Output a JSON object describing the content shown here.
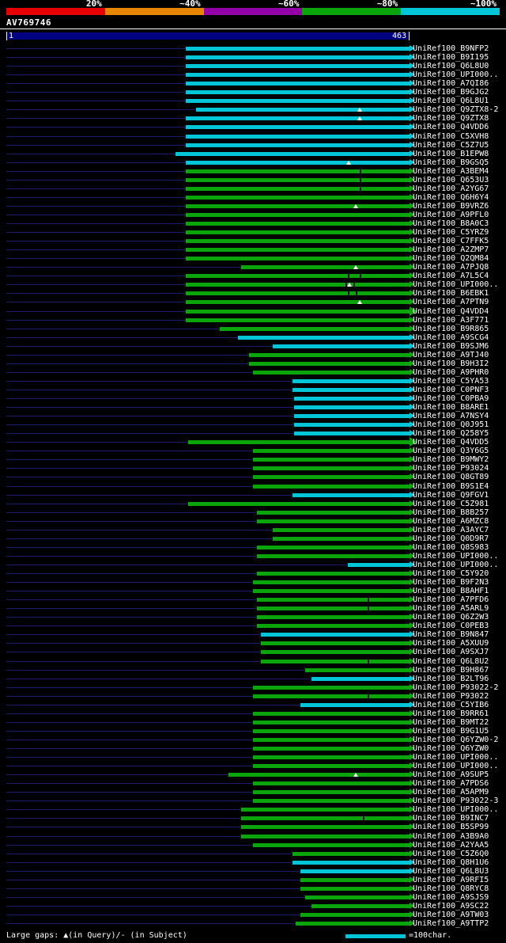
{
  "colors": {
    "background": "#000000",
    "text": "#ffffff",
    "row_baseline": "#1c1c6e",
    "query_bar": "#000080",
    "cyan": "#00c6d8",
    "green": "#0aa50a"
  },
  "scale_bar": {
    "segments": [
      {
        "label": "20%",
        "color": "#e60000"
      },
      {
        "label": "~40%",
        "color": "#e88600"
      },
      {
        "label": "~60%",
        "color": "#9400a8"
      },
      {
        "label": "~80%",
        "color": "#0aa50a"
      },
      {
        "label": "~100%",
        "color": "#00c6d8"
      }
    ]
  },
  "query": {
    "name": "AV769746",
    "start_label": "1",
    "end_label": "463",
    "length": 463
  },
  "footer": {
    "gaps_legend": "Large gaps: ▲(in Query)/- (in Subject)",
    "scale_label": "=100char."
  },
  "chart_data": {
    "type": "bar",
    "subtype": "alignment-coverage-spans",
    "x_range": [
      1,
      463
    ],
    "legend": {
      "cyan": "~100% identity",
      "green": "~80% identity"
    },
    "rows": [
      {
        "label": "UniRef100_B9NFP2",
        "identity": "cyan",
        "start": 207,
        "end": 463
      },
      {
        "label": "UniRef100_B9I195",
        "identity": "cyan",
        "start": 207,
        "end": 463
      },
      {
        "label": "UniRef100_Q6L8U0",
        "identity": "cyan",
        "start": 207,
        "end": 463
      },
      {
        "label": "UniRef100_UPI000..",
        "identity": "cyan",
        "start": 207,
        "end": 463
      },
      {
        "label": "UniRef100_A7QI86",
        "identity": "cyan",
        "start": 207,
        "end": 463
      },
      {
        "label": "UniRef100_B9GJG2",
        "identity": "cyan",
        "start": 207,
        "end": 463
      },
      {
        "label": "UniRef100_Q6L8U1",
        "identity": "cyan",
        "start": 207,
        "end": 463
      },
      {
        "label": "UniRef100_Q9ZTX8-2",
        "identity": "cyan",
        "start": 218,
        "end": 463,
        "gaps_query": [
          406
        ]
      },
      {
        "label": "UniRef100_Q9ZTX8",
        "identity": "cyan",
        "start": 207,
        "end": 463,
        "gaps_query": [
          406
        ]
      },
      {
        "label": "UniRef100_Q4VDD6",
        "identity": "cyan",
        "start": 207,
        "end": 463
      },
      {
        "label": "UniRef100_C5XVH8",
        "identity": "cyan",
        "start": 207,
        "end": 463
      },
      {
        "label": "UniRef100_C5Z7U5",
        "identity": "cyan",
        "start": 207,
        "end": 463
      },
      {
        "label": "UniRef100_B1EPW8",
        "identity": "cyan",
        "start": 195,
        "end": 463
      },
      {
        "label": "UniRef100_B9GSQ5",
        "identity": "cyan",
        "start": 207,
        "end": 463,
        "gaps_query": [
          393
        ]
      },
      {
        "label": "UniRef100_A3BEM4",
        "identity": "green",
        "start": 207,
        "end": 463,
        "gaps_subject": [
          406
        ]
      },
      {
        "label": "UniRef100_Q653U3",
        "identity": "green",
        "start": 207,
        "end": 463,
        "gaps_subject": [
          406
        ]
      },
      {
        "label": "UniRef100_A2YG67",
        "identity": "green",
        "start": 207,
        "end": 463,
        "gaps_subject": [
          406
        ]
      },
      {
        "label": "UniRef100_Q6H6Y4",
        "identity": "green",
        "start": 207,
        "end": 463
      },
      {
        "label": "UniRef100_B9VRZ6",
        "identity": "green",
        "start": 207,
        "end": 463,
        "gaps_query": [
          401
        ]
      },
      {
        "label": "UniRef100_A9PFL0",
        "identity": "green",
        "start": 207,
        "end": 463
      },
      {
        "label": "UniRef100_B8A0C3",
        "identity": "green",
        "start": 207,
        "end": 463
      },
      {
        "label": "UniRef100_C5YRZ9",
        "identity": "green",
        "start": 207,
        "end": 463
      },
      {
        "label": "UniRef100_C7FFK5",
        "identity": "green",
        "start": 207,
        "end": 463
      },
      {
        "label": "UniRef100_A2ZMP7",
        "identity": "green",
        "start": 207,
        "end": 463
      },
      {
        "label": "UniRef100_Q2QM84",
        "identity": "green",
        "start": 207,
        "end": 463
      },
      {
        "label": "UniRef100_A7PJQ8",
        "identity": "green",
        "start": 270,
        "end": 463,
        "gaps_query": [
          401
        ]
      },
      {
        "label": "UniRef100_A7L5C4",
        "identity": "green",
        "start": 207,
        "end": 463,
        "gaps_subject": [
          392,
          406
        ]
      },
      {
        "label": "UniRef100_UPI000..",
        "identity": "green",
        "start": 207,
        "end": 463,
        "gaps_query": [
          394
        ],
        "gaps_subject": [
          390,
          399
        ]
      },
      {
        "label": "UniRef100_B6EBK1",
        "identity": "green",
        "start": 207,
        "end": 463,
        "gaps_subject": [
          392,
          401
        ]
      },
      {
        "label": "UniRef100_A7PTN9",
        "identity": "green",
        "start": 207,
        "end": 463,
        "gaps_query": [
          406
        ]
      },
      {
        "label": "UniRef100_Q4VDD4",
        "identity": "green",
        "start": 207,
        "end": 463,
        "big_arrow": true
      },
      {
        "label": "UniRef100_A3F771",
        "identity": "green",
        "start": 207,
        "end": 463
      },
      {
        "label": "UniRef100_B9R865",
        "identity": "green",
        "start": 246,
        "end": 463
      },
      {
        "label": "UniRef100_A9SCG4",
        "identity": "cyan",
        "start": 266,
        "end": 463
      },
      {
        "label": "UniRef100_B9SJM6",
        "identity": "cyan",
        "start": 306,
        "end": 463
      },
      {
        "label": "UniRef100_A9TJ40",
        "identity": "green",
        "start": 279,
        "end": 463
      },
      {
        "label": "UniRef100_B9H3I2",
        "identity": "green",
        "start": 279,
        "end": 463
      },
      {
        "label": "UniRef100_A9PHR0",
        "identity": "green",
        "start": 284,
        "end": 463
      },
      {
        "label": "UniRef100_C5YA53",
        "identity": "cyan",
        "start": 329,
        "end": 463
      },
      {
        "label": "UniRef100_C0PNF3",
        "identity": "cyan",
        "start": 329,
        "end": 463
      },
      {
        "label": "UniRef100_C0PBA9",
        "identity": "cyan",
        "start": 331,
        "end": 463
      },
      {
        "label": "UniRef100_B8ARE1",
        "identity": "cyan",
        "start": 331,
        "end": 463
      },
      {
        "label": "UniRef100_A7NSY4",
        "identity": "cyan",
        "start": 331,
        "end": 463
      },
      {
        "label": "UniRef100_Q0J951",
        "identity": "cyan",
        "start": 331,
        "end": 463
      },
      {
        "label": "UniRef100_Q258Y5",
        "identity": "cyan",
        "start": 331,
        "end": 463
      },
      {
        "label": "UniRef100_Q4VDD5",
        "identity": "green",
        "start": 209,
        "end": 463,
        "big_arrow": true
      },
      {
        "label": "UniRef100_Q3Y6G5",
        "identity": "green",
        "start": 284,
        "end": 463
      },
      {
        "label": "UniRef100_B9MWY2",
        "identity": "green",
        "start": 284,
        "end": 463
      },
      {
        "label": "UniRef100_P93024",
        "identity": "green",
        "start": 284,
        "end": 463
      },
      {
        "label": "UniRef100_Q8GT89",
        "identity": "green",
        "start": 284,
        "end": 463
      },
      {
        "label": "UniRef100_B9S1E4",
        "identity": "green",
        "start": 284,
        "end": 463
      },
      {
        "label": "UniRef100_Q9FGV1",
        "identity": "cyan",
        "start": 329,
        "end": 463
      },
      {
        "label": "UniRef100_C5Z981",
        "identity": "green",
        "start": 209,
        "end": 463
      },
      {
        "label": "UniRef100_B8B257",
        "identity": "green",
        "start": 288,
        "end": 463
      },
      {
        "label": "UniRef100_A6MZC8",
        "identity": "green",
        "start": 288,
        "end": 463
      },
      {
        "label": "UniRef100_A3AYC7",
        "identity": "green",
        "start": 306,
        "end": 463
      },
      {
        "label": "UniRef100_Q0D9R7",
        "identity": "green",
        "start": 306,
        "end": 463
      },
      {
        "label": "UniRef100_Q8S983",
        "identity": "green",
        "start": 288,
        "end": 463
      },
      {
        "label": "UniRef100_UPI000..",
        "identity": "green",
        "start": 288,
        "end": 463
      },
      {
        "label": "UniRef100_UPI000..",
        "identity": "cyan",
        "start": 392,
        "end": 463
      },
      {
        "label": "UniRef100_C5Y920",
        "identity": "green",
        "start": 288,
        "end": 463
      },
      {
        "label": "UniRef100_B9F2N3",
        "identity": "green",
        "start": 284,
        "end": 463
      },
      {
        "label": "UniRef100_B8AHF1",
        "identity": "green",
        "start": 284,
        "end": 463
      },
      {
        "label": "UniRef100_A7PFD6",
        "identity": "green",
        "start": 288,
        "end": 463,
        "gaps_subject": [
          415
        ]
      },
      {
        "label": "UniRef100_A5ARL9",
        "identity": "green",
        "start": 288,
        "end": 463,
        "gaps_subject": [
          415
        ]
      },
      {
        "label": "UniRef100_Q6Z2W3",
        "identity": "green",
        "start": 288,
        "end": 463
      },
      {
        "label": "UniRef100_C0PEB3",
        "identity": "green",
        "start": 288,
        "end": 463
      },
      {
        "label": "UniRef100_B9N847",
        "identity": "cyan",
        "start": 293,
        "end": 463
      },
      {
        "label": "UniRef100_A5XUU9",
        "identity": "green",
        "start": 293,
        "end": 463
      },
      {
        "label": "UniRef100_A9SXJ7",
        "identity": "green",
        "start": 293,
        "end": 463
      },
      {
        "label": "UniRef100_Q6L8U2",
        "identity": "green",
        "start": 293,
        "end": 463,
        "gaps_subject": [
          415
        ]
      },
      {
        "label": "UniRef100_B9H867",
        "identity": "green",
        "start": 343,
        "end": 463
      },
      {
        "label": "UniRef100_B2LT96",
        "identity": "cyan",
        "start": 351,
        "end": 463
      },
      {
        "label": "UniRef100_P93022-2",
        "identity": "green",
        "start": 284,
        "end": 463
      },
      {
        "label": "UniRef100_P93022",
        "identity": "green",
        "start": 284,
        "end": 463,
        "gaps_subject": [
          415
        ]
      },
      {
        "label": "UniRef100_C5YIB6",
        "identity": "cyan",
        "start": 338,
        "end": 463
      },
      {
        "label": "UniRef100_B9RR61",
        "identity": "green",
        "start": 284,
        "end": 463
      },
      {
        "label": "UniRef100_B9MT22",
        "identity": "green",
        "start": 284,
        "end": 463
      },
      {
        "label": "UniRef100_B9G1U5",
        "identity": "green",
        "start": 284,
        "end": 463
      },
      {
        "label": "UniRef100_Q6YZW0-2",
        "identity": "green",
        "start": 284,
        "end": 463
      },
      {
        "label": "UniRef100_Q6YZW0",
        "identity": "green",
        "start": 284,
        "end": 463
      },
      {
        "label": "UniRef100_UPI000..",
        "identity": "green",
        "start": 284,
        "end": 463
      },
      {
        "label": "UniRef100_UPI000..",
        "identity": "green",
        "start": 284,
        "end": 463
      },
      {
        "label": "UniRef100_A9SUP5",
        "identity": "green",
        "start": 256,
        "end": 463,
        "gaps_query": [
          401
        ]
      },
      {
        "label": "UniRef100_A7PDS6",
        "identity": "green",
        "start": 284,
        "end": 463
      },
      {
        "label": "UniRef100_A5APM9",
        "identity": "green",
        "start": 284,
        "end": 463
      },
      {
        "label": "UniRef100_P93022-3",
        "identity": "green",
        "start": 284,
        "end": 463
      },
      {
        "label": "UniRef100_UPI000..",
        "identity": "green",
        "start": 270,
        "end": 463
      },
      {
        "label": "UniRef100_B9INC7",
        "identity": "green",
        "start": 270,
        "end": 463,
        "gaps_subject": [
          410
        ]
      },
      {
        "label": "UniRef100_B5SP99",
        "identity": "green",
        "start": 270,
        "end": 463
      },
      {
        "label": "UniRef100_A3B9A0",
        "identity": "green",
        "start": 270,
        "end": 463
      },
      {
        "label": "UniRef100_A2YAA5",
        "identity": "green",
        "start": 284,
        "end": 463
      },
      {
        "label": "UniRef100_C5Z6Q0",
        "identity": "green",
        "start": 329,
        "end": 463
      },
      {
        "label": "UniRef100_Q8H1U6",
        "identity": "cyan",
        "start": 329,
        "end": 463
      },
      {
        "label": "UniRef100_Q6L8U3",
        "identity": "cyan",
        "start": 338,
        "end": 463
      },
      {
        "label": "UniRef100_A9RFI5",
        "identity": "green",
        "start": 338,
        "end": 463
      },
      {
        "label": "UniRef100_Q8RYC8",
        "identity": "green",
        "start": 338,
        "end": 463
      },
      {
        "label": "UniRef100_A9SJS9",
        "identity": "green",
        "start": 343,
        "end": 463
      },
      {
        "label": "UniRef100_A9SC22",
        "identity": "green",
        "start": 351,
        "end": 463
      },
      {
        "label": "UniRef100_A9TW03",
        "identity": "green",
        "start": 338,
        "end": 463
      },
      {
        "label": "UniRef100_A9TTP2",
        "identity": "green",
        "start": 333,
        "end": 463
      }
    ]
  }
}
